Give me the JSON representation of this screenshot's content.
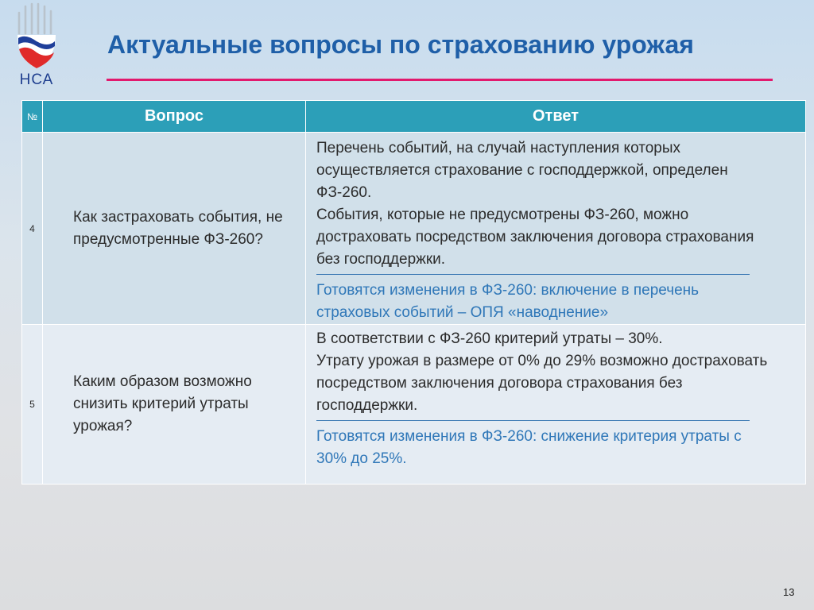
{
  "logo": {
    "text": "НСА"
  },
  "title": "Актуальные вопросы по страхованию урожая",
  "table": {
    "headers": {
      "num": "№",
      "question": "Вопрос",
      "answer": "Ответ"
    },
    "rows": [
      {
        "num": "4",
        "question": "Как застраховать события, не предусмотренные ФЗ-260?",
        "answer_lines": [
          "Перечень событий, на случай наступления которых осуществляется страхование с господдержкой, определен ФЗ-260.",
          "События, которые не предусмотрены ФЗ-260, можно достраховать посредством заключения договора страхования без господдержки."
        ],
        "highlight": "Готовятся изменения в ФЗ-260: включение в перечень страховых событий – ОПЯ «наводнение»"
      },
      {
        "num": "5",
        "question": "Каким образом возможно снизить критерий утраты урожая?",
        "answer_lines": [
          "В соответствии  с ФЗ-260 критерий утраты – 30%.",
          "Утрату урожая в размере от 0% до 29% возможно достраховать посредством заключения договора страхования без господдержки."
        ],
        "highlight": "Готовятся изменения в ФЗ-260: снижение критерия утраты с 30% до 25%."
      }
    ]
  },
  "page_number": "13"
}
